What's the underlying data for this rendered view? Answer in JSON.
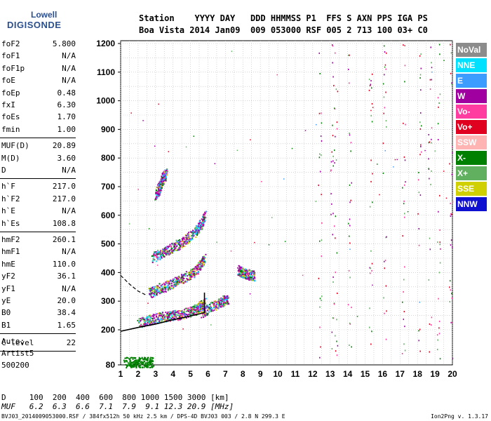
{
  "logo": {
    "top": "Lowell",
    "bottom": "DIGISONDE"
  },
  "header": {
    "labels": "Station    YYYY DAY   DDD HHMMSS P1  FFS S AXN PPS IGA PS",
    "values": "Boa Vista 2014 Jan09  009 053000 RSF 005 2 713 100 03+ C0"
  },
  "params_group1": [
    {
      "name": "foF2",
      "value": "5.800"
    },
    {
      "name": "foF1",
      "value": "N/A"
    },
    {
      "name": "foF1p",
      "value": "N/A"
    },
    {
      "name": "foE",
      "value": "N/A"
    },
    {
      "name": "foEp",
      "value": "0.48"
    },
    {
      "name": "fxI",
      "value": "6.30"
    },
    {
      "name": "foEs",
      "value": "1.70"
    },
    {
      "name": "fmin",
      "value": "1.00"
    }
  ],
  "params_group2": [
    {
      "name": "MUF(D)",
      "value": "20.89"
    },
    {
      "name": "M(D)",
      "value": "3.60"
    },
    {
      "name": "D",
      "value": "N/A"
    }
  ],
  "params_group3": [
    {
      "name": "h`F",
      "value": "217.0"
    },
    {
      "name": "h`F2",
      "value": "217.0"
    },
    {
      "name": "h`E",
      "value": "N/A"
    },
    {
      "name": "h`Es",
      "value": "108.8"
    }
  ],
  "params_group4": [
    {
      "name": "hmF2",
      "value": "260.1"
    },
    {
      "name": "hmF1",
      "value": "N/A"
    },
    {
      "name": "hmE",
      "value": "110.0"
    },
    {
      "name": "yF2",
      "value": "36.1"
    },
    {
      "name": "yF1",
      "value": "N/A"
    },
    {
      "name": "yE",
      "value": "20.0"
    },
    {
      "name": "B0",
      "value": "38.4"
    },
    {
      "name": "B1",
      "value": "1.65"
    }
  ],
  "clevel": {
    "name": "C-level",
    "value": "22"
  },
  "auto": {
    "line1": "Auto:",
    "line2": "Artist5",
    "line3": "500200"
  },
  "legend": [
    {
      "label": "NoVal",
      "bg": "#8c8c8c",
      "fg": "#ffffff"
    },
    {
      "label": "NNE",
      "bg": "#00e0ff",
      "fg": "#ffffff"
    },
    {
      "label": "E",
      "bg": "#3c9cff",
      "fg": "#ffffff"
    },
    {
      "label": "W",
      "bg": "#a000a0",
      "fg": "#ffffff"
    },
    {
      "label": "Vo-",
      "bg": "#ff3ca0",
      "fg": "#ffffff"
    },
    {
      "label": "Vo+",
      "bg": "#e00020",
      "fg": "#ffffff"
    },
    {
      "label": "SSW",
      "bg": "#ffb4b4",
      "fg": "#ffffff"
    },
    {
      "label": "X-",
      "bg": "#008000",
      "fg": "#ffffff"
    },
    {
      "label": "X+",
      "bg": "#60b060",
      "fg": "#ffffff"
    },
    {
      "label": "SSE",
      "bg": "#d0d000",
      "fg": "#ffffff"
    },
    {
      "label": "NNW",
      "bg": "#1010d0",
      "fg": "#ffffff"
    }
  ],
  "mufline": {
    "d_line": "D     100  200  400  600  800 1000 1500 3000 [km]",
    "muf_line": "MUF   6.2  6.3  6.6  7.1  7.9  9.1 12.3 20.9 [MHz]"
  },
  "footer": {
    "left": "BVJ03_2014009053000.RSF / 384fx512h 50 kHz 2.5 km / DPS-4D BVJ03 003 / 2.8 N 299.3 E",
    "right": "Ion2Png v. 1.3.17"
  },
  "chart_data": {
    "type": "scatter",
    "x_ticks": [
      1,
      2,
      3,
      4,
      5,
      6,
      7,
      8,
      9,
      10,
      11,
      12,
      13,
      14,
      15,
      16,
      17,
      18,
      19,
      20
    ],
    "y_ticks": [
      80,
      200,
      300,
      400,
      500,
      600,
      700,
      800,
      900,
      1000,
      1100,
      1200
    ],
    "xlim": [
      1,
      20
    ],
    "ylim": [
      80,
      1200
    ],
    "grid": true,
    "colors": {
      "W": "#a000a0",
      "E": "#3c9cff",
      "NNE": "#00e0ff",
      "XM": "#008000",
      "XP": "#60b060",
      "VOM": "#ff3ca0",
      "VOP": "#e00020",
      "SSE": "#d0d000",
      "NNW": "#1010d0",
      "NOVAL": "#8c8c8c"
    },
    "traces": [
      {
        "name": "F2 O-trace 1st hop",
        "color_key": "W",
        "points": [
          [
            2.0,
            225
          ],
          [
            2.6,
            235
          ],
          [
            3.2,
            245
          ],
          [
            3.8,
            250
          ],
          [
            4.4,
            255
          ],
          [
            5.0,
            265
          ],
          [
            5.4,
            275
          ],
          [
            5.8,
            300
          ]
        ]
      },
      {
        "name": "F2 2nd hop",
        "color_key": "W",
        "points": [
          [
            2.6,
            330
          ],
          [
            3.2,
            345
          ],
          [
            3.8,
            360
          ],
          [
            4.4,
            375
          ],
          [
            5.0,
            395
          ],
          [
            5.5,
            420
          ],
          [
            5.8,
            450
          ]
        ]
      },
      {
        "name": "F2 3rd hop",
        "color_key": "W",
        "points": [
          [
            2.8,
            455
          ],
          [
            3.4,
            470
          ],
          [
            4.0,
            490
          ],
          [
            4.6,
            510
          ],
          [
            5.2,
            540
          ],
          [
            5.6,
            570
          ],
          [
            5.8,
            600
          ]
        ]
      },
      {
        "name": "F2 4th hop",
        "color_key": "W",
        "points": [
          [
            3.0,
            670
          ],
          [
            3.2,
            700
          ],
          [
            3.4,
            730
          ],
          [
            3.6,
            750
          ]
        ]
      },
      {
        "name": "X-trace",
        "color_key": "W",
        "points": [
          [
            5.6,
            260
          ],
          [
            6.2,
            280
          ],
          [
            6.8,
            300
          ],
          [
            7.1,
            310
          ]
        ]
      },
      {
        "name": "Spread",
        "color_key": "W",
        "points": [
          [
            7.7,
            410
          ],
          [
            8.0,
            400
          ],
          [
            8.3,
            395
          ],
          [
            8.6,
            390
          ]
        ]
      },
      {
        "name": "Es",
        "color_key": "XM",
        "points": [
          [
            1.2,
            90
          ],
          [
            1.8,
            90
          ],
          [
            2.4,
            90
          ],
          [
            2.8,
            90
          ]
        ]
      }
    ],
    "vertical_noise": {
      "x": [
        12.4,
        13.1,
        13.3,
        14.1,
        15.3,
        16.1,
        17.2,
        18.1,
        18.7,
        19.2,
        19.9
      ],
      "ymin": 100,
      "ymax": 1200
    },
    "profile_curve": {
      "points": [
        [
          1.0,
          195
        ],
        [
          2.0,
          208
        ],
        [
          3.0,
          220
        ],
        [
          4.0,
          235
        ],
        [
          5.0,
          248
        ],
        [
          5.8,
          260
        ],
        [
          5.8,
          330
        ]
      ]
    },
    "extrapolation_curve": {
      "points": [
        [
          1.0,
          390
        ],
        [
          1.5,
          360
        ],
        [
          2.0,
          335
        ],
        [
          2.5,
          320
        ]
      ]
    }
  }
}
